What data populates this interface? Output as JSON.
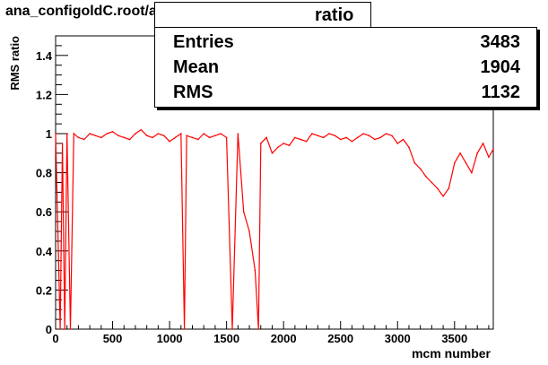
{
  "file_title": "ana_configoldC.root/ana_SM_alone.root",
  "stats": {
    "header": "ratio",
    "rows": [
      {
        "label": "Entries",
        "value": "3483"
      },
      {
        "label": "Mean",
        "value": "1904"
      },
      {
        "label": "RMS",
        "value": "1132"
      }
    ]
  },
  "chart_data": {
    "type": "line",
    "title": "ana_configoldC.root/ana_SM_alone.root",
    "xlabel": "mcm number",
    "ylabel": "RMS ratio",
    "xlim": [
      0,
      3840
    ],
    "ylim": [
      0,
      1.5
    ],
    "x_ticks": [
      0,
      500,
      1000,
      1500,
      2000,
      2500,
      3000,
      3500
    ],
    "x_tick_labels": [
      "0",
      "500",
      "1000",
      "1500",
      "2000",
      "2500",
      "3000",
      "3500"
    ],
    "y_ticks": [
      0,
      0.2,
      0.4,
      0.6,
      0.8,
      1.0,
      1.2,
      1.4
    ],
    "y_tick_labels": [
      "0",
      "0.2",
      "0.4",
      "0.6",
      "0.8",
      "1",
      "1.2",
      "1.4"
    ],
    "series": [
      {
        "color": "#ff0000",
        "x": [
          0,
          40,
          60,
          80,
          100,
          130,
          160,
          200,
          250,
          300,
          350,
          400,
          450,
          500,
          550,
          600,
          650,
          700,
          750,
          800,
          850,
          900,
          950,
          1000,
          1050,
          1100,
          1130,
          1150,
          1200,
          1250,
          1300,
          1350,
          1400,
          1450,
          1500,
          1550,
          1600,
          1650,
          1700,
          1750,
          1780,
          1800,
          1850,
          1900,
          1950,
          2000,
          2050,
          2100,
          2150,
          2200,
          2250,
          2300,
          2350,
          2400,
          2450,
          2500,
          2550,
          2600,
          2650,
          2700,
          2750,
          2800,
          2850,
          2900,
          2950,
          3000,
          3050,
          3100,
          3150,
          3200,
          3250,
          3300,
          3350,
          3400,
          3450,
          3500,
          3550,
          3600,
          3650,
          3700,
          3750,
          3800,
          3840
        ],
        "y": [
          1.0,
          0.0,
          0.95,
          0.0,
          1.0,
          0.0,
          1.0,
          0.98,
          0.97,
          1.0,
          0.99,
          0.98,
          1.0,
          1.01,
          0.99,
          0.98,
          0.97,
          1.0,
          1.02,
          0.99,
          0.98,
          1.0,
          0.99,
          0.96,
          0.98,
          1.0,
          0.0,
          0.99,
          0.98,
          0.97,
          1.0,
          0.98,
          0.99,
          1.0,
          0.98,
          0.0,
          1.0,
          0.6,
          0.5,
          0.3,
          0.0,
          0.95,
          0.98,
          0.9,
          0.93,
          0.95,
          0.94,
          0.98,
          0.97,
          0.96,
          1.0,
          0.99,
          0.98,
          1.0,
          0.99,
          0.97,
          0.98,
          0.96,
          0.98,
          1.0,
          0.99,
          0.97,
          0.98,
          1.0,
          0.99,
          0.95,
          0.97,
          0.93,
          0.85,
          0.82,
          0.78,
          0.75,
          0.72,
          0.68,
          0.72,
          0.85,
          0.9,
          0.85,
          0.8,
          0.9,
          0.95,
          0.88,
          0.92
        ]
      }
    ]
  }
}
